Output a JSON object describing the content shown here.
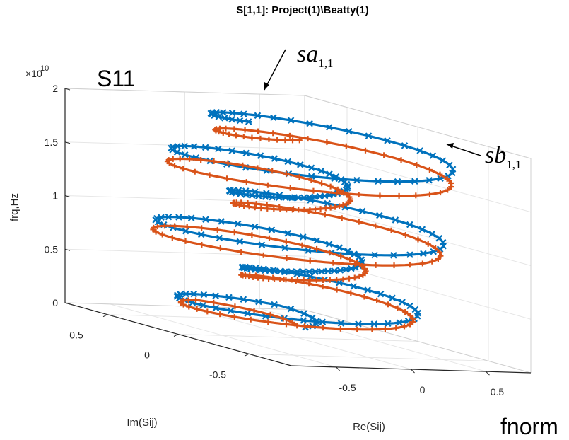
{
  "chart_data": {
    "type": "line",
    "projection": "3d",
    "title": "S[1,1]: Project(1)\\Beatty(1)",
    "panel_label": "S11",
    "corner_label": "fnorm",
    "xlabel": "Re(Sij)",
    "ylabel": "Im(Sij)",
    "zlabel": "frq,Hz",
    "z_exponent_label": "×10",
    "z_exponent_power": "10",
    "xlim": [
      -0.8,
      0.8
    ],
    "ylim": [
      -0.8,
      0.8
    ],
    "zlim": [
      0,
      20000000000.0
    ],
    "x_ticks": [
      {
        "v": -0.5,
        "label": "-0.5"
      },
      {
        "v": 0,
        "label": "0"
      },
      {
        "v": 0.5,
        "label": "0.5"
      }
    ],
    "y_ticks": [
      {
        "v": -0.5,
        "label": "-0.5"
      },
      {
        "v": 0,
        "label": "0"
      },
      {
        "v": 0.5,
        "label": "0.5"
      }
    ],
    "z_ticks": [
      {
        "v": 0,
        "label": "0"
      },
      {
        "v": 5000000000.0,
        "label": "0.5"
      },
      {
        "v": 10000000000.0,
        "label": "1"
      },
      {
        "v": 15000000000.0,
        "label": "1.5"
      },
      {
        "v": 20000000000.0,
        "label": "2"
      }
    ],
    "grid": true,
    "colors": {
      "series_a": "#0072BD",
      "series_b": "#D95319",
      "axes": "#262626",
      "grid": "#e6e6e6"
    },
    "series": [
      {
        "name": "sa",
        "label_sub": "1,1",
        "color": "#0072BD",
        "marker": "x",
        "z_range": [
          1000000000.0,
          20000000000.0
        ],
        "spiral_turns": 5.5,
        "radius_profile": "oscillating, ~0.78 at 2e10 Hz, ~0.2 near 1.75e10 Hz",
        "marker_count": 220
      },
      {
        "name": "sb",
        "label_sub": "1,1",
        "color": "#D95319",
        "marker": "+",
        "z_range": [
          1000000000.0,
          19000000000.0
        ],
        "spiral_turns": 5.5,
        "radius_profile": "oscillating, ~0.75 at 1.9e10 Hz, ~0.2 near 1.85e10 Hz",
        "marker_count": 220
      }
    ]
  }
}
